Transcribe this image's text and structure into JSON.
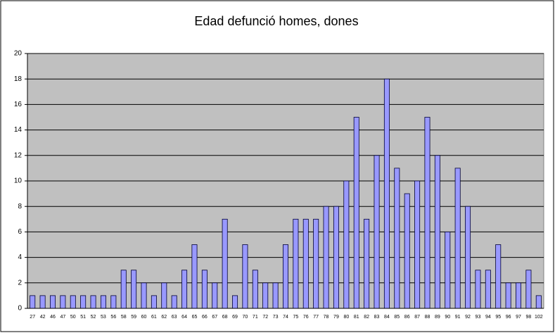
{
  "chart_data": {
    "type": "bar",
    "title": "Edad defunció homes, dones",
    "categories": [
      "27",
      "42",
      "46",
      "47",
      "50",
      "51",
      "52",
      "53",
      "56",
      "58",
      "59",
      "60",
      "61",
      "62",
      "63",
      "64",
      "65",
      "66",
      "67",
      "68",
      "69",
      "70",
      "71",
      "72",
      "73",
      "74",
      "75",
      "76",
      "77",
      "78",
      "79",
      "80",
      "81",
      "82",
      "83",
      "84",
      "85",
      "86",
      "87",
      "88",
      "89",
      "90",
      "91",
      "92",
      "93",
      "94",
      "95",
      "96",
      "97",
      "98",
      "102"
    ],
    "values": [
      1,
      1,
      1,
      1,
      1,
      1,
      1,
      1,
      1,
      3,
      3,
      2,
      1,
      2,
      1,
      3,
      5,
      3,
      2,
      7,
      1,
      5,
      3,
      2,
      2,
      5,
      7,
      7,
      7,
      8,
      8,
      10,
      15,
      7,
      12,
      18,
      11,
      9,
      10,
      15,
      12,
      6,
      11,
      8,
      3,
      3,
      5,
      2,
      2,
      3,
      1
    ],
    "color": "#9999ff",
    "ylim": [
      0,
      20
    ],
    "yticks": [
      0,
      2,
      4,
      6,
      8,
      10,
      12,
      14,
      16,
      18,
      20
    ],
    "grid": true
  }
}
